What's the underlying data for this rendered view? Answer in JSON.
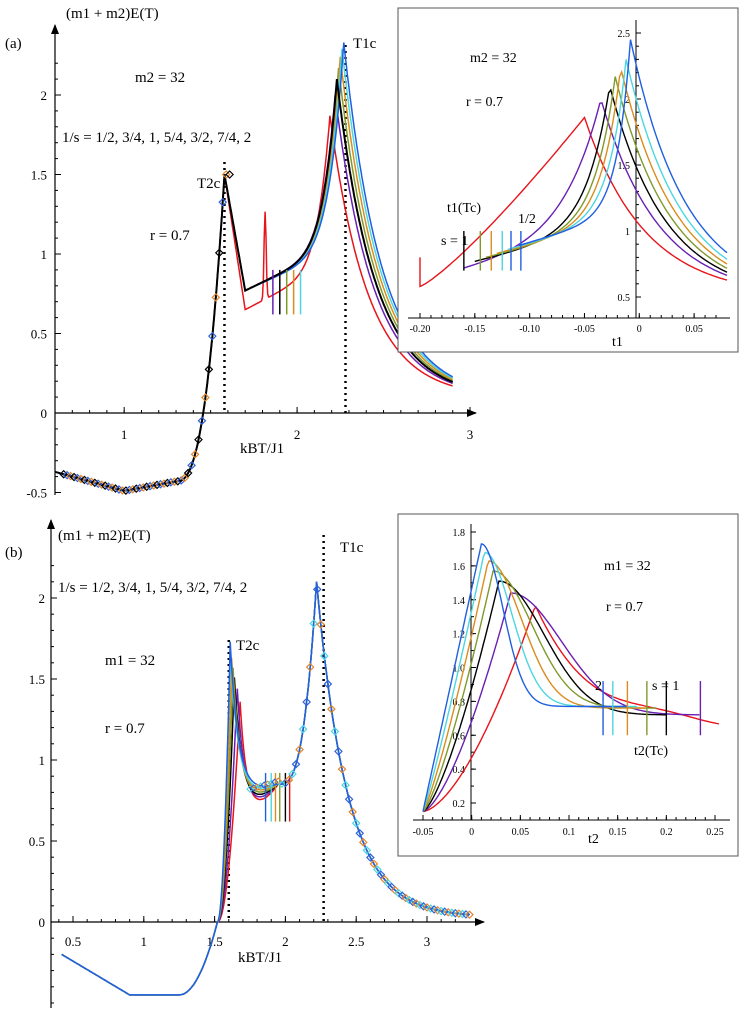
{
  "colors": {
    "s_half": "#e8141b",
    "s_3_4": "#6a1fb3",
    "s_1": "#000000",
    "s_5_4": "#7f9a2b",
    "s_3_2": "#d98d1c",
    "s_7_4": "#4cd6e0",
    "s_2": "#1f5fe0",
    "marker_black": "#000000",
    "marker_blue": "#2f62d8",
    "marker_orange": "#e4862b"
  },
  "chart_data": [
    {
      "id": "panel_a_main",
      "type": "line",
      "panel_label": "(a)",
      "ylabel": "(m1 + m2)E(T)",
      "xlabel": "kBT/J1",
      "xticks": [
        "1",
        "2",
        "3"
      ],
      "yticks": [
        "-0.5",
        "0",
        "0.5",
        "1",
        "1.5",
        "2"
      ],
      "xlim": [
        0.6,
        3.0
      ],
      "ylim": [
        -0.55,
        2.35
      ],
      "annotations": {
        "m_label": "m2 = 32",
        "s_label": "1/s = 1/2, 3/4, 1, 5/4, 3/2, 7/4, 2",
        "r_label": "r = 0.7",
        "t2c_label": "T2c",
        "t1c_label": "T1c"
      },
      "critical_temps": {
        "T2c": 1.58,
        "T1c": 2.28
      },
      "series": [
        {
          "name": "1/s = 1/2",
          "peak": [
            2.19,
            1.87
          ],
          "min_y": 0.6
        },
        {
          "name": "1/s = 3/4",
          "peak": [
            2.22,
            2.0
          ],
          "min_y": 0.72
        },
        {
          "name": "1/s = 1",
          "peak": [
            2.23,
            2.1
          ],
          "min_y": 0.72
        },
        {
          "name": "1/s = 5/4",
          "peak": [
            2.24,
            2.17
          ],
          "min_y": 0.72
        },
        {
          "name": "1/s = 3/2",
          "peak": [
            2.25,
            2.24
          ],
          "min_y": 0.72
        },
        {
          "name": "1/s = 7/4",
          "peak": [
            2.26,
            2.29
          ],
          "min_y": 0.72
        },
        {
          "name": "1/s = 2",
          "peak": [
            2.27,
            2.33
          ],
          "min_y": 0.72
        }
      ]
    },
    {
      "id": "panel_a_inset",
      "type": "line",
      "xlabel": "t1",
      "xticks": [
        "-0.20",
        "-0.15",
        "-0.10",
        "-0.05",
        "0",
        "0.05"
      ],
      "yticks": [
        "0.5",
        "1",
        "1.5",
        "2",
        "2.5"
      ],
      "xlim": [
        -0.2,
        0.08
      ],
      "ylim": [
        0.4,
        2.6
      ],
      "annotations": {
        "m_label": "m2 = 32",
        "r_label": "r = 0.7",
        "tc_label": "t1(Tc)",
        "s1_label": "s = 1",
        "half_label": "1/2"
      },
      "series": [
        {
          "name": "1/s = 1/2",
          "peak": [
            -0.05,
            1.86
          ]
        },
        {
          "name": "1/s = 3/4",
          "peak": [
            -0.035,
            2.0
          ]
        },
        {
          "name": "1/s = 1",
          "peak": [
            -0.027,
            2.1
          ]
        },
        {
          "name": "1/s = 5/4",
          "peak": [
            -0.022,
            2.17
          ]
        },
        {
          "name": "1/s = 3/2",
          "peak": [
            -0.017,
            2.24
          ]
        },
        {
          "name": "1/s = 7/4",
          "peak": [
            -0.012,
            2.3
          ]
        },
        {
          "name": "1/s = 2",
          "peak": [
            -0.008,
            2.45
          ]
        }
      ]
    },
    {
      "id": "panel_b_main",
      "type": "line",
      "panel_label": "(b)",
      "ylabel": "(m1 + m2)E(T)",
      "xlabel": "kBT/J1",
      "xticks": [
        "0.5",
        "1",
        "1.5",
        "2",
        "2.5",
        "3"
      ],
      "yticks": [
        "0",
        "0.5",
        "1",
        "1.5",
        "2"
      ],
      "xlim": [
        0.35,
        3.35
      ],
      "ylim": [
        -0.55,
        2.3
      ],
      "annotations": {
        "m_label": "m1 = 32",
        "s_label": "1/s = 1/2, 3/4, 1, 5/4, 3/2, 7/4, 2",
        "r_label": "r = 0.7",
        "t2c_label": "T2c",
        "t1c_label": "T1c"
      },
      "critical_temps": {
        "T2c": 1.6,
        "T1c": 2.27
      },
      "series": [
        {
          "name": "1/s = 1/2",
          "peak": [
            1.68,
            1.36
          ]
        },
        {
          "name": "1/s = 3/4",
          "peak": [
            1.66,
            1.44
          ]
        },
        {
          "name": "1/s = 1",
          "peak": [
            1.64,
            1.51
          ]
        },
        {
          "name": "1/s = 5/4",
          "peak": [
            1.63,
            1.57
          ]
        },
        {
          "name": "1/s = 3/2",
          "peak": [
            1.62,
            1.63
          ]
        },
        {
          "name": "1/s = 7/4",
          "peak": [
            1.61,
            1.68
          ]
        },
        {
          "name": "1/s = 2",
          "peak": [
            1.61,
            1.73
          ]
        }
      ]
    },
    {
      "id": "panel_b_inset",
      "type": "line",
      "xlabel": "t2",
      "xticks": [
        "-0.05",
        "0",
        "0.05",
        "0.1",
        "0.15",
        "0.2",
        "0.25"
      ],
      "yticks": [
        "0.2",
        "0.4",
        "0.6",
        "0.8",
        "1.0",
        "1.2",
        "1.4",
        "1.6",
        "1.8"
      ],
      "xlim": [
        -0.05,
        0.26
      ],
      "ylim": [
        0.1,
        1.85
      ],
      "annotations": {
        "m_label": "m1 = 32",
        "r_label": "r = 0.7",
        "tc_label": "t2(Tc)",
        "s1_label": "s = 1",
        "two_label": "2"
      },
      "series": [
        {
          "name": "1/s = 1/2",
          "peak": [
            0.065,
            1.36
          ]
        },
        {
          "name": "1/s = 3/4",
          "peak": [
            0.04,
            1.44
          ]
        },
        {
          "name": "1/s = 1",
          "peak": [
            0.028,
            1.51
          ]
        },
        {
          "name": "1/s = 5/4",
          "peak": [
            0.022,
            1.57
          ]
        },
        {
          "name": "1/s = 3/2",
          "peak": [
            0.017,
            1.63
          ]
        },
        {
          "name": "1/s = 7/4",
          "peak": [
            0.013,
            1.68
          ]
        },
        {
          "name": "1/s = 2",
          "peak": [
            0.01,
            1.73
          ]
        }
      ]
    }
  ]
}
